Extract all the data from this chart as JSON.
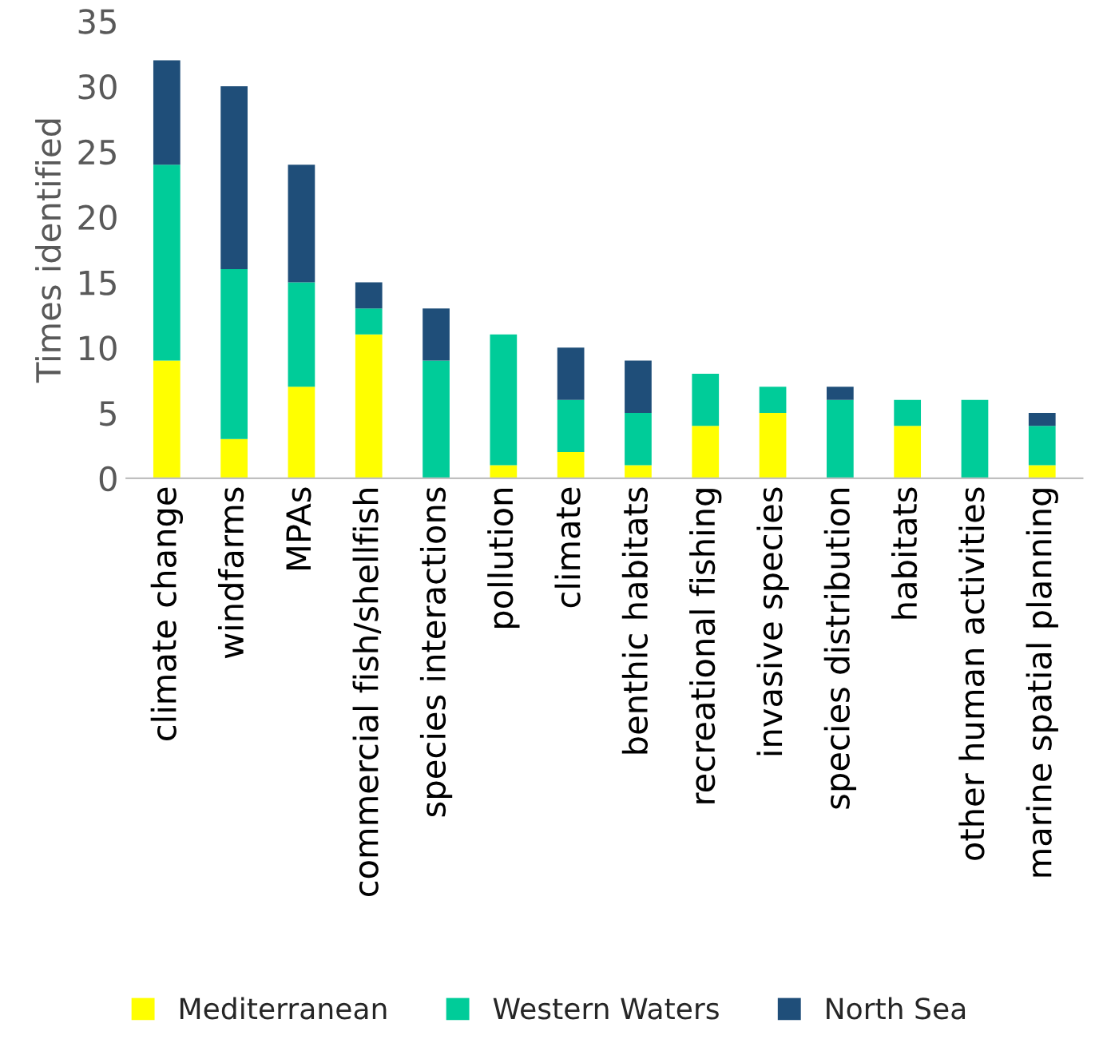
{
  "chart_data": {
    "type": "bar",
    "stacked": true,
    "ylabel": "Times identified",
    "categories": [
      "climate change",
      "windfarms",
      "MPAs",
      "commercial fish/shellfish",
      "species interactions",
      "pollution",
      "climate",
      "benthic habitats",
      "recreational fishing",
      "invasive species",
      "species distribution",
      "habitats",
      "other human activities",
      "marine spatial planning"
    ],
    "series": [
      {
        "name": "Mediterranean",
        "color": "#ffff00",
        "values": [
          9,
          3,
          7,
          11,
          0,
          1,
          2,
          1,
          4,
          5,
          0,
          4,
          0,
          1
        ]
      },
      {
        "name": "Western Waters",
        "color": "#00cc99",
        "values": [
          15,
          13,
          8,
          2,
          9,
          10,
          4,
          4,
          4,
          2,
          6,
          2,
          6,
          3
        ]
      },
      {
        "name": "North Sea",
        "color": "#1f4e79",
        "values": [
          8,
          14,
          9,
          2,
          4,
          0,
          4,
          4,
          0,
          0,
          1,
          0,
          0,
          1
        ]
      }
    ],
    "ylim": [
      0,
      35
    ],
    "yticks": [
      0,
      5,
      10,
      15,
      20,
      25,
      30,
      35
    ],
    "grid": false,
    "legend": "bottom"
  }
}
